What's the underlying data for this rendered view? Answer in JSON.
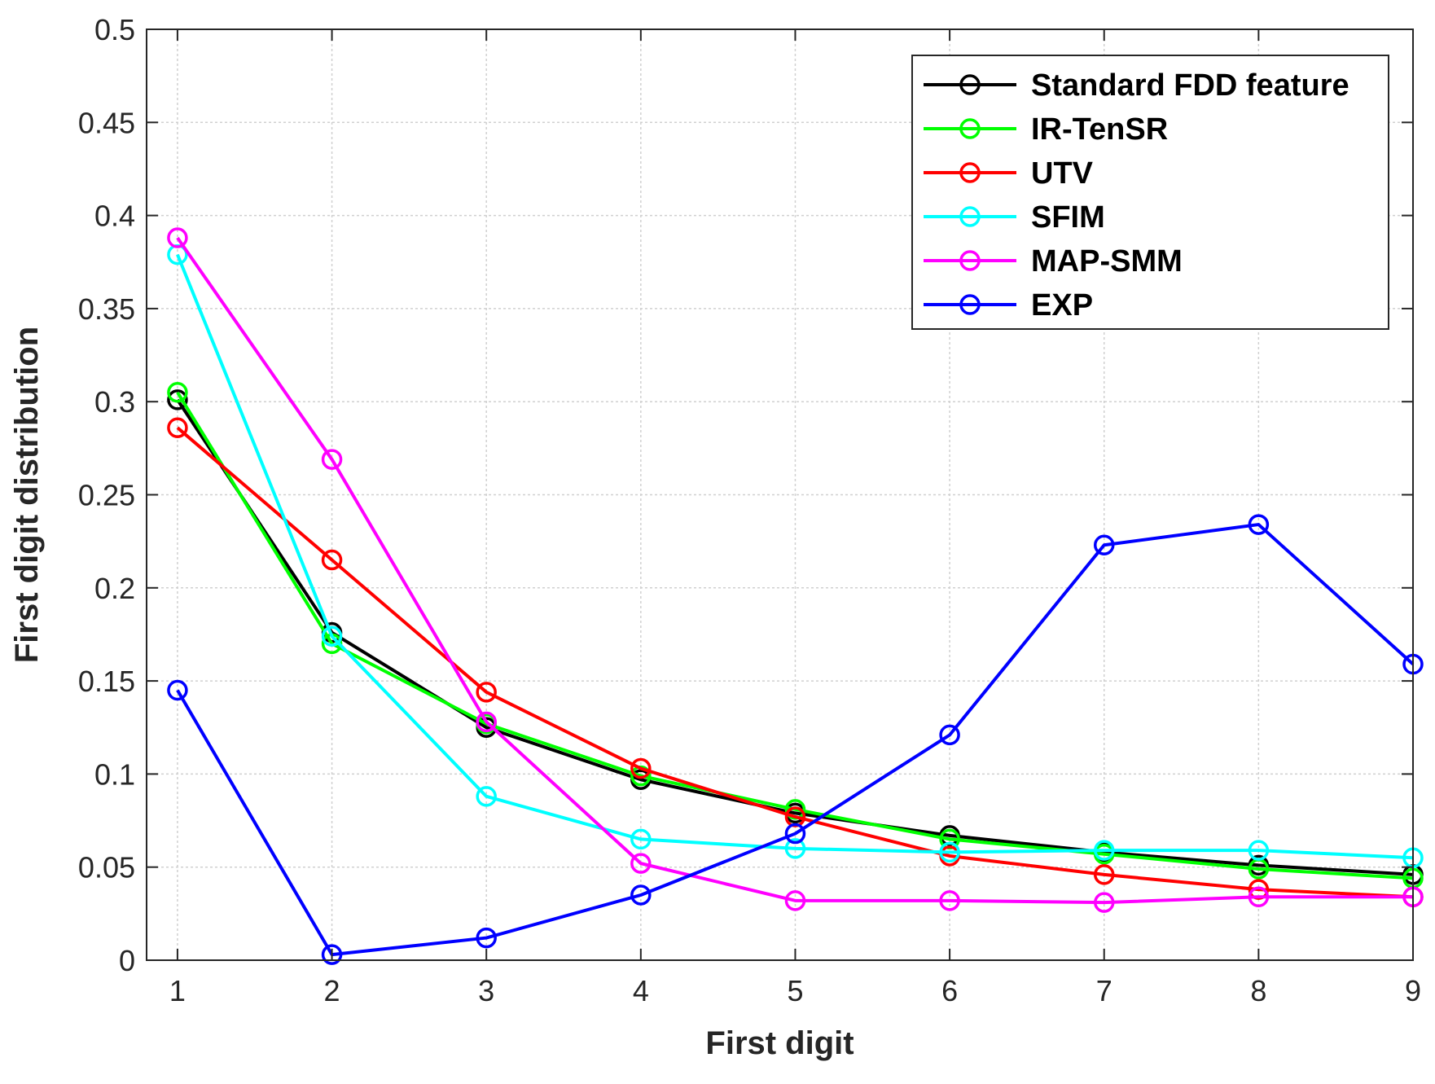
{
  "chart_data": {
    "type": "line",
    "title": "",
    "xlabel": "First digit",
    "ylabel": "First digit distribution",
    "x": [
      1,
      2,
      3,
      4,
      5,
      6,
      7,
      8,
      9
    ],
    "x_ticks": [
      "1",
      "2",
      "3",
      "4",
      "5",
      "6",
      "7",
      "8",
      "9"
    ],
    "y_ticks": [
      "0",
      "0.05",
      "0.1",
      "0.15",
      "0.2",
      "0.25",
      "0.3",
      "0.35",
      "0.4",
      "0.45",
      "0.5"
    ],
    "xlim": [
      0.8,
      9
    ],
    "ylim": [
      0,
      0.5
    ],
    "grid": true,
    "legend_position": "top-right",
    "marker": "circle",
    "series": [
      {
        "name": "Standard FDD feature",
        "color": "#000000",
        "values": [
          0.301,
          0.176,
          0.125,
          0.097,
          0.079,
          0.067,
          0.058,
          0.051,
          0.046
        ]
      },
      {
        "name": "IR-TenSR",
        "color": "#00ff00",
        "values": [
          0.305,
          0.17,
          0.127,
          0.099,
          0.081,
          0.065,
          0.057,
          0.049,
          0.044
        ]
      },
      {
        "name": "UTV",
        "color": "#ff0000",
        "values": [
          0.286,
          0.215,
          0.144,
          0.103,
          0.077,
          0.056,
          0.046,
          0.038,
          0.034
        ]
      },
      {
        "name": "SFIM",
        "color": "#00ffff",
        "values": [
          0.379,
          0.174,
          0.088,
          0.065,
          0.06,
          0.058,
          0.059,
          0.059,
          0.055
        ]
      },
      {
        "name": "MAP-SMM",
        "color": "#ff00ff",
        "values": [
          0.388,
          0.269,
          0.128,
          0.052,
          0.032,
          0.032,
          0.031,
          0.034,
          0.034
        ]
      },
      {
        "name": "EXP",
        "color": "#0000ff",
        "values": [
          0.145,
          0.003,
          0.012,
          0.035,
          0.068,
          0.121,
          0.223,
          0.234,
          0.159
        ]
      }
    ]
  }
}
